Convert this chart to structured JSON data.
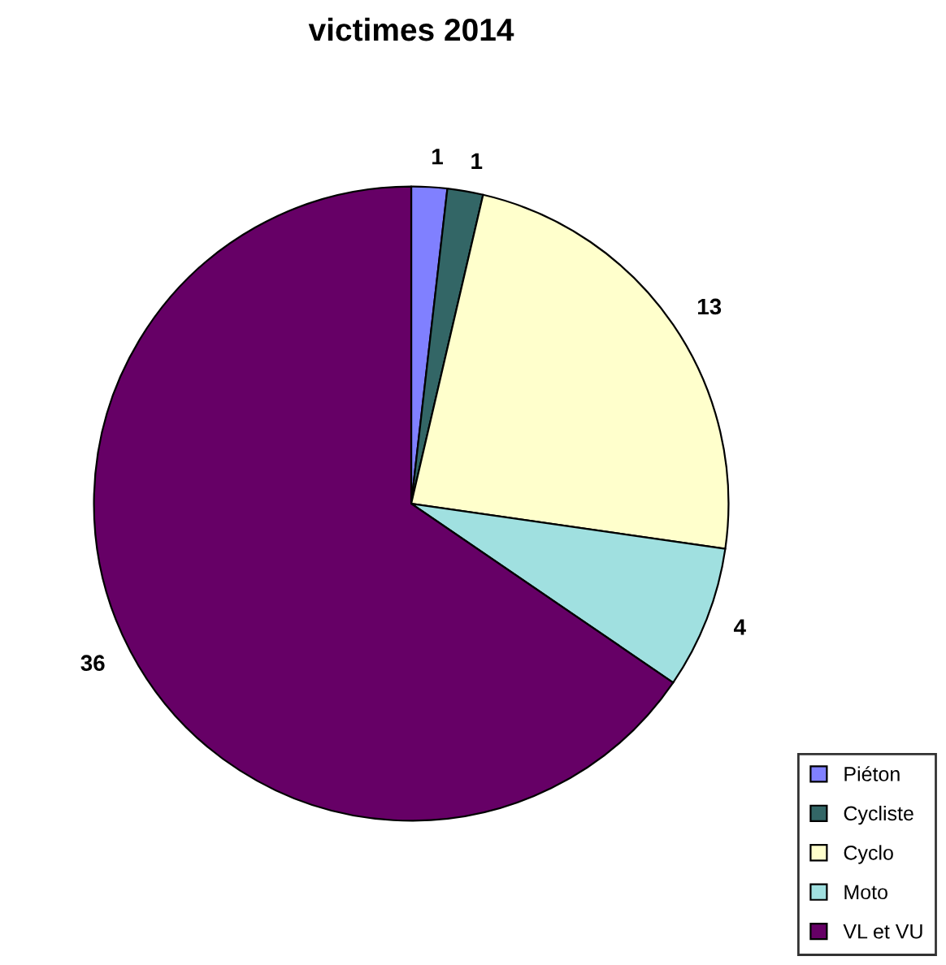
{
  "chart_data": {
    "type": "pie",
    "title": "victimes 2014",
    "categories": [
      "Piéton",
      "Cycliste",
      "Cyclo",
      "Moto",
      "VL et VU"
    ],
    "values": [
      1,
      1,
      13,
      4,
      36
    ],
    "colors": [
      "#8080ff",
      "#336666",
      "#ffffcc",
      "#a0e0e0",
      "#660066"
    ],
    "data_labels": true,
    "legend": "bottom right"
  }
}
